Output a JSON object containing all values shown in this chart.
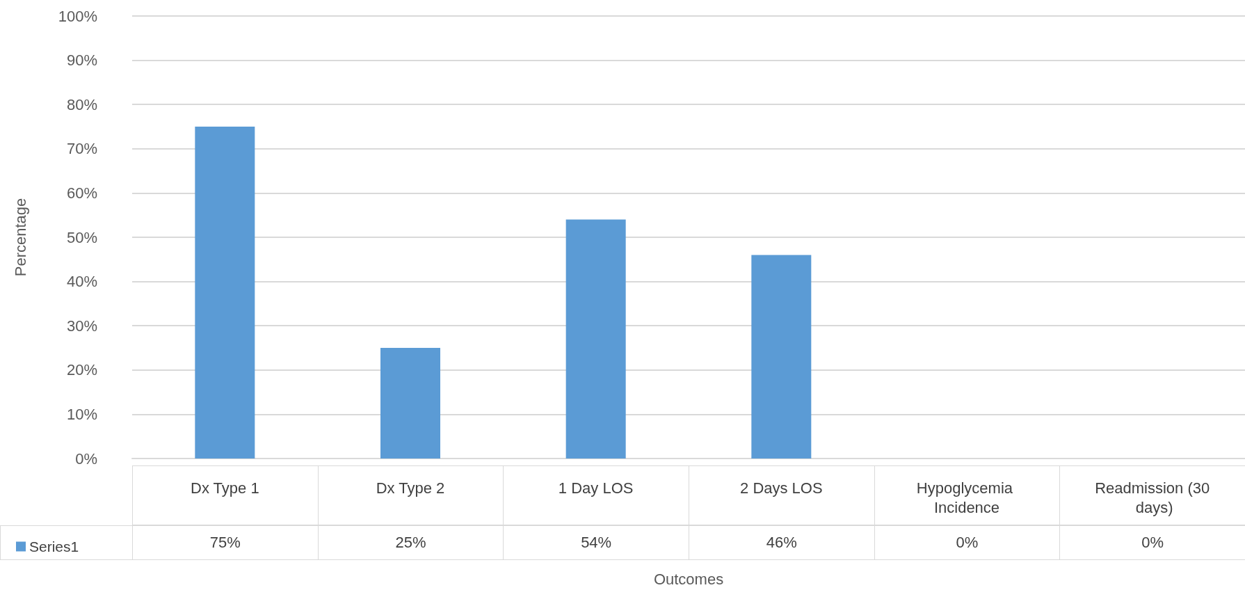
{
  "chart_data": {
    "type": "bar",
    "xlabel": "Outcomes",
    "ylabel": "Percentage",
    "categories": [
      "Dx Type 1",
      "Dx Type 2",
      "1 Day LOS",
      "2 Days LOS",
      "Hypoglycemia Incidence",
      "Readmission (30 days)"
    ],
    "series": [
      {
        "name": "Series1",
        "color": "#5b9bd5",
        "values": [
          75,
          25,
          54,
          46,
          0,
          0
        ],
        "value_labels": [
          "75%",
          "25%",
          "54%",
          "46%",
          "0%",
          "0%"
        ]
      }
    ],
    "ylim": [
      0,
      100
    ],
    "yticks": [
      {
        "value": 0,
        "label": "0%"
      },
      {
        "value": 10,
        "label": "10%"
      },
      {
        "value": 20,
        "label": "20%"
      },
      {
        "value": 30,
        "label": "30%"
      },
      {
        "value": 40,
        "label": "40%"
      },
      {
        "value": 50,
        "label": "50%"
      },
      {
        "value": 60,
        "label": "60%"
      },
      {
        "value": 70,
        "label": "70%"
      },
      {
        "value": 80,
        "label": "80%"
      },
      {
        "value": 90,
        "label": "90%"
      },
      {
        "value": 100,
        "label": "100%"
      }
    ],
    "grid": "y",
    "legend": "bottom left"
  }
}
